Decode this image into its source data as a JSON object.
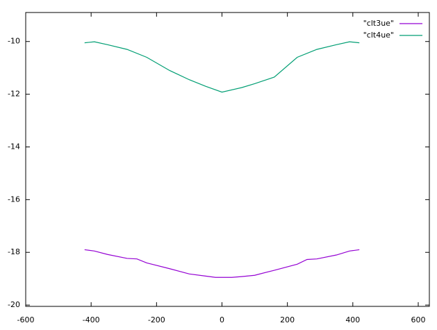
{
  "chart_data": {
    "type": "line",
    "series": [
      {
        "name": "\"clt3ue\"",
        "color": "#9400d3",
        "x": [
          -420,
          -390,
          -350,
          -290,
          -260,
          -230,
          -160,
          -100,
          -50,
          -20,
          0,
          30,
          60,
          100,
          160,
          230,
          260,
          290,
          350,
          390,
          420
        ],
        "values": [
          -17.9,
          -17.95,
          -18.08,
          -18.23,
          -18.25,
          -18.4,
          -18.62,
          -18.82,
          -18.9,
          -18.95,
          -18.95,
          -18.95,
          -18.92,
          -18.87,
          -18.68,
          -18.45,
          -18.27,
          -18.25,
          -18.1,
          -17.95,
          -17.9
        ]
      },
      {
        "name": "\"clt4ue\"",
        "color": "#009e73",
        "x": [
          -420,
          -390,
          -350,
          -290,
          -230,
          -160,
          -100,
          -50,
          0,
          60,
          100,
          160,
          230,
          290,
          350,
          390,
          420
        ],
        "values": [
          -10.05,
          -10.01,
          -10.12,
          -10.3,
          -10.6,
          -11.1,
          -11.45,
          -11.7,
          -11.92,
          -11.75,
          -11.6,
          -11.35,
          -10.6,
          -10.3,
          -10.12,
          -10.01,
          -10.05
        ]
      }
    ],
    "xlim": [
      -600,
      634
    ],
    "xticks": [
      -600,
      -400,
      -200,
      0,
      200,
      400,
      600
    ],
    "ylim": [
      -20.05,
      -8.9
    ],
    "yticks": [
      -20,
      -18,
      -16,
      -14,
      -12,
      -10
    ],
    "legend": "top-right"
  }
}
